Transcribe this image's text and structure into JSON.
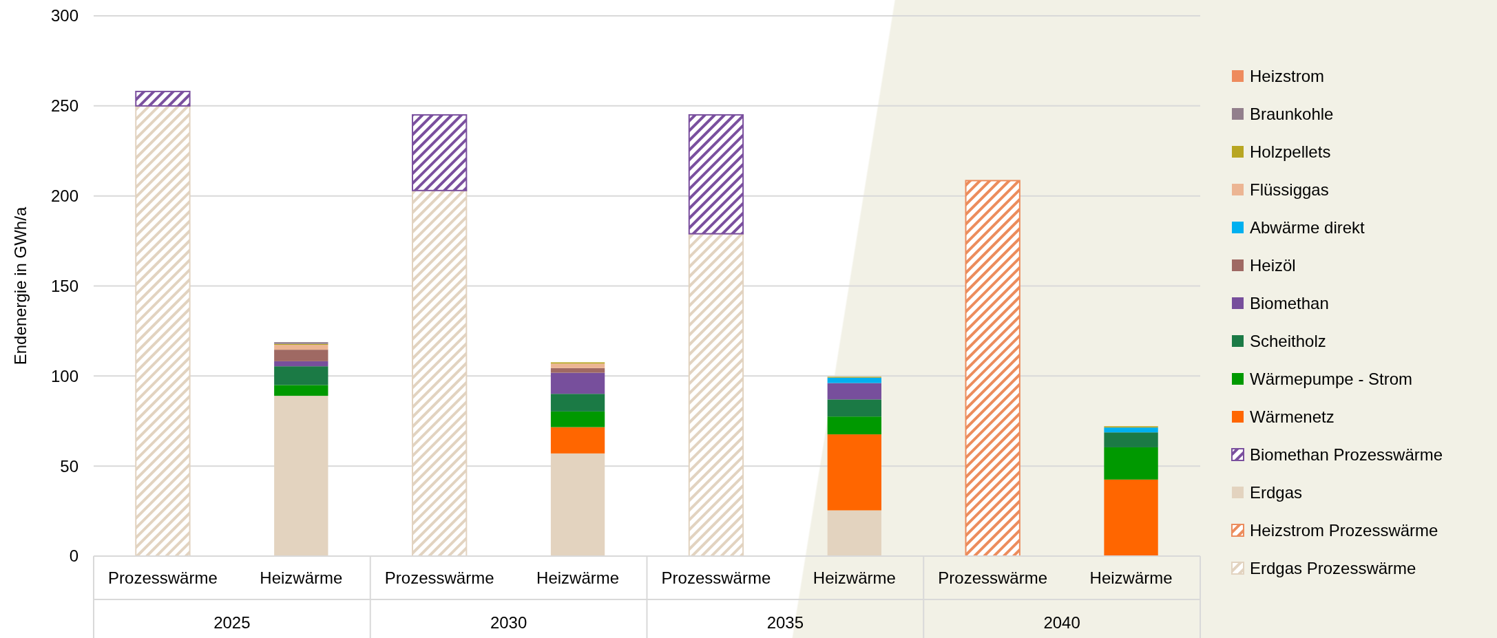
{
  "chart_data": {
    "type": "bar",
    "stacked": true,
    "ylabel": "Endenergie in GWh/a",
    "categories": [
      "Prozesswärme",
      "Heizwärme",
      "Prozesswärme",
      "Heizwärme",
      "Prozesswärme",
      "Heizwärme",
      "Prozesswärme",
      "Heizwärme"
    ],
    "annotations": [
      "2025",
      "2030",
      "2035",
      "2040"
    ],
    "ylim": [
      0,
      300
    ],
    "yticks": [
      0,
      50,
      100,
      150,
      200,
      250,
      300
    ],
    "grid": "y",
    "legend": "right",
    "series": [
      {
        "name": "Erdgas Prozesswärme",
        "color": "#e2d3c0",
        "values": [
          250,
          0,
          203,
          0,
          179,
          0,
          0,
          0
        ]
      },
      {
        "name": "Heizstrom Prozesswärme",
        "color": "#ec8c5c",
        "values": [
          0,
          0,
          0,
          0,
          0,
          0,
          208.5,
          0
        ]
      },
      {
        "name": "Erdgas",
        "color": "#e3d3bf",
        "values": [
          0,
          89,
          0,
          57,
          0,
          25.4,
          0,
          0
        ]
      },
      {
        "name": "Biomethan Prozesswärme",
        "color": "#7a4f9e",
        "values": [
          8,
          0,
          42,
          0,
          66,
          0,
          0,
          0
        ]
      },
      {
        "name": "Wärmenetz",
        "color": "#ff6600",
        "values": [
          0,
          0,
          0,
          14.6,
          0,
          42.2,
          0,
          42.5
        ]
      },
      {
        "name": "Wärmepumpe - Strom",
        "color": "#009900",
        "values": [
          0,
          6,
          0,
          8.7,
          0,
          9.9,
          0,
          17.9
        ]
      },
      {
        "name": "Scheitholz",
        "color": "#1b7a45",
        "values": [
          0,
          10.4,
          0,
          9.8,
          0,
          9.5,
          0,
          8.3
        ]
      },
      {
        "name": "Biomethan",
        "color": "#774f9c",
        "values": [
          0,
          2.8,
          0,
          11.7,
          0,
          9.1,
          0,
          0
        ]
      },
      {
        "name": "Heizöl",
        "color": "#9f6963",
        "values": [
          0,
          6.4,
          0,
          2.6,
          0,
          0,
          0,
          0
        ]
      },
      {
        "name": "Abwärme direkt",
        "color": "#00b0f0",
        "values": [
          0,
          0,
          0,
          0,
          0,
          3,
          0,
          2.7
        ]
      },
      {
        "name": "Flüssiggas",
        "color": "#ecb593",
        "values": [
          0,
          2.7,
          0,
          2.5,
          0,
          0,
          0,
          0
        ]
      },
      {
        "name": "Holzpellets",
        "color": "#b8a622",
        "values": [
          0,
          0.5,
          0,
          0.7,
          0,
          0.5,
          0,
          0.7
        ]
      },
      {
        "name": "Braunkohle",
        "color": "#927f8c",
        "values": [
          0,
          1,
          0,
          0,
          0,
          0,
          0,
          0
        ]
      },
      {
        "name": "Heizstrom",
        "color": "#ee8b5d",
        "values": [
          0,
          0,
          0,
          0,
          0,
          0,
          0,
          0
        ]
      }
    ]
  }
}
